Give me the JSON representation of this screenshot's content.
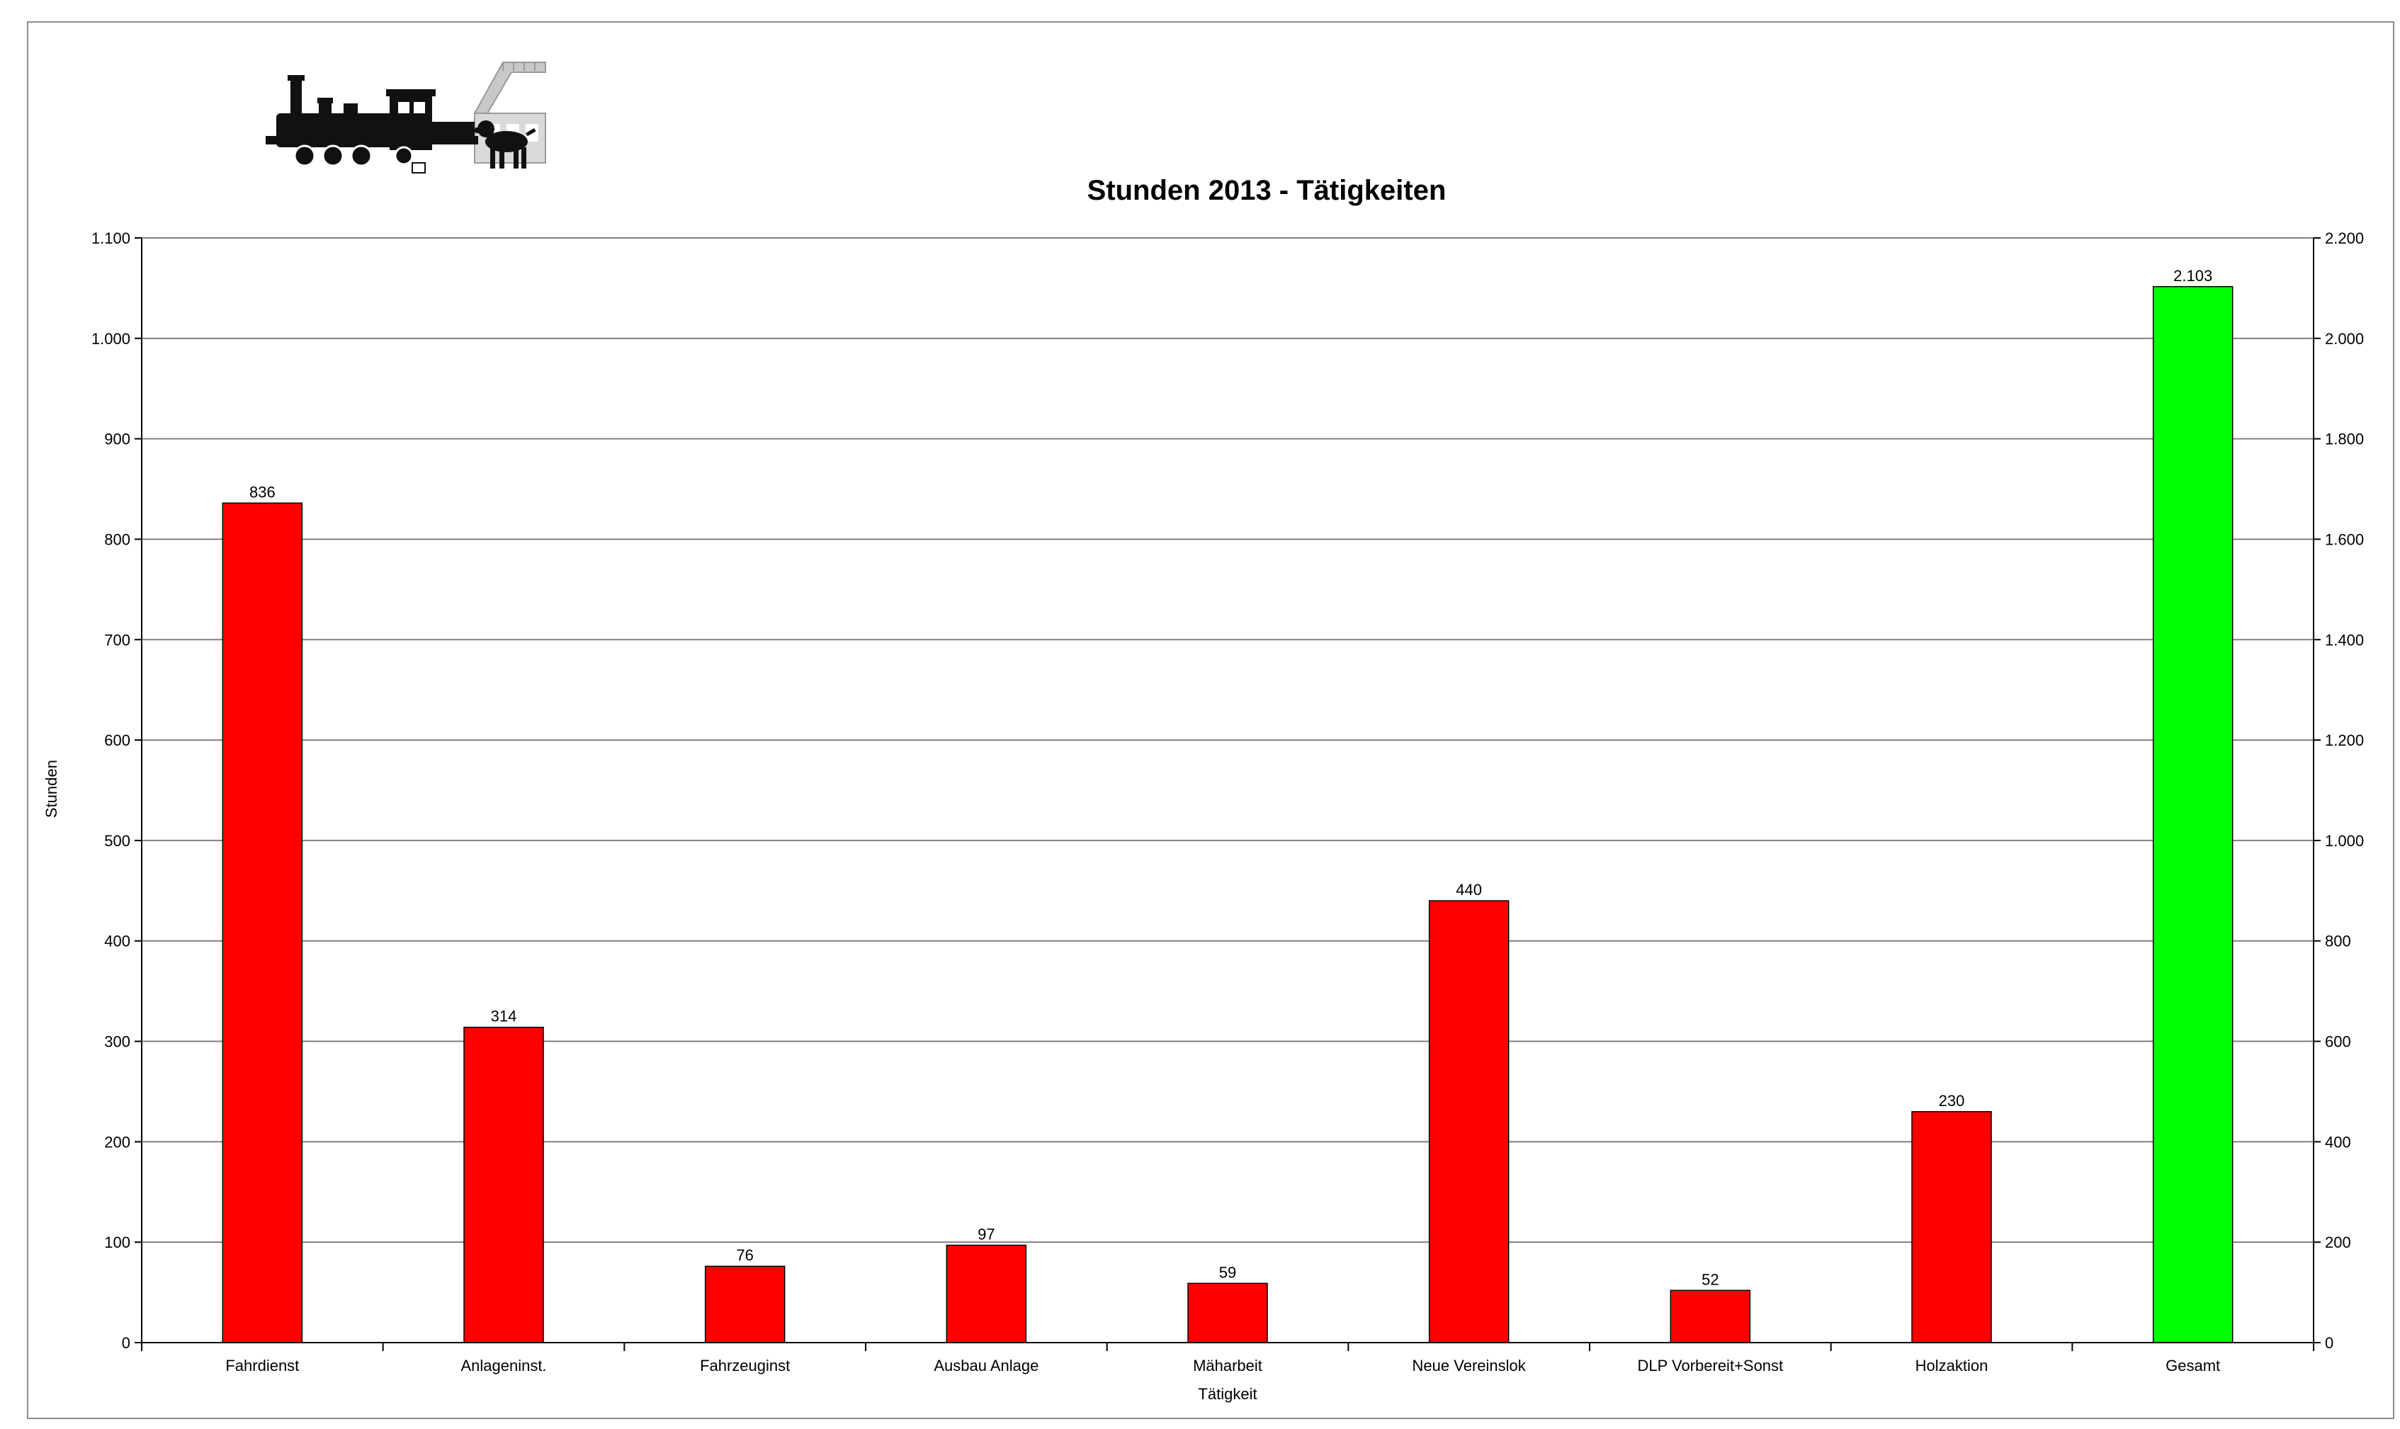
{
  "chart_data": {
    "type": "bar",
    "title": "Stunden 2013 - Tätigkeiten",
    "xlabel": "Tätigkeit",
    "ylabel": "Stunden",
    "categories": [
      "Fahrdienst",
      "Anlageninst.",
      "Fahrzeuginst",
      "Ausbau Anlage",
      "Mäharbeit",
      "Neue Vereinslok",
      "DLP Vorbereit+Sonst",
      "Holzaktion",
      "Gesamt"
    ],
    "series": [
      {
        "axis": "left",
        "color": "#ff0000",
        "values": [
          836,
          314,
          76,
          97,
          59,
          440,
          52,
          230,
          null
        ],
        "labels": [
          "836",
          "314",
          "76",
          "97",
          "59",
          "440",
          "52",
          "230",
          ""
        ]
      },
      {
        "axis": "right",
        "color": "#00ff00",
        "values": [
          null,
          null,
          null,
          null,
          null,
          null,
          null,
          null,
          2103
        ],
        "labels": [
          "",
          "",
          "",
          "",
          "",
          "",
          "",
          "",
          "2.103"
        ]
      }
    ],
    "ylim": [
      0,
      1100
    ],
    "y_ticks": [
      0,
      100,
      200,
      300,
      400,
      500,
      600,
      700,
      800,
      900,
      1000,
      1100
    ],
    "y_tick_labels": [
      "0",
      "100",
      "200",
      "300",
      "400",
      "500",
      "600",
      "700",
      "800",
      "900",
      "1.000",
      "1.100"
    ],
    "y2lim": [
      0,
      2200
    ],
    "y2_ticks": [
      0,
      200,
      400,
      600,
      800,
      1000,
      1200,
      1400,
      1600,
      1800,
      2000,
      2200
    ],
    "y2_tick_labels": [
      "0",
      "200",
      "400",
      "600",
      "800",
      "1.000",
      "1.200",
      "1.400",
      "1.600",
      "1.800",
      "2.000",
      "2.200"
    ],
    "grid": true,
    "legend": "none"
  },
  "logo": {
    "icon": "steam-locomotive-and-dog-icon"
  }
}
